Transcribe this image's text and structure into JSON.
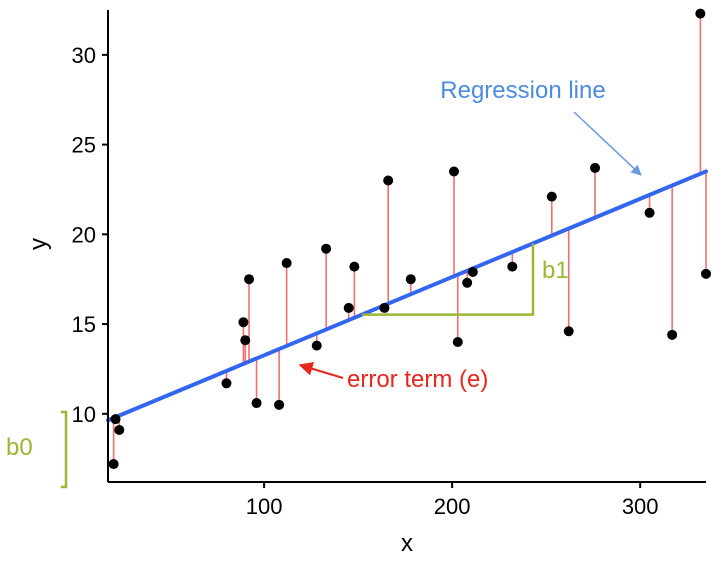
{
  "chart_data": {
    "type": "scatter",
    "title": "",
    "xlabel": "x",
    "ylabel": "y",
    "xlim": [
      17,
      335
    ],
    "ylim": [
      6.2,
      32.5
    ],
    "x_ticks": [
      100,
      200,
      300
    ],
    "y_ticks": [
      10,
      15,
      20,
      25,
      30
    ],
    "grid": false,
    "regression_line": {
      "label": "Regression line",
      "intercept": 8.9,
      "slope": 0.0436,
      "color": "#3366ee"
    },
    "points_color": "#000000",
    "residual_color": "#f07070",
    "points": [
      {
        "x": 20,
        "y": 7.2
      },
      {
        "x": 21,
        "y": 9.7
      },
      {
        "x": 23,
        "y": 9.1
      },
      {
        "x": 80,
        "y": 11.7
      },
      {
        "x": 89,
        "y": 15.1
      },
      {
        "x": 90,
        "y": 14.1
      },
      {
        "x": 92,
        "y": 17.5
      },
      {
        "x": 96,
        "y": 10.6
      },
      {
        "x": 108,
        "y": 10.5
      },
      {
        "x": 112,
        "y": 18.4
      },
      {
        "x": 128,
        "y": 13.8
      },
      {
        "x": 133,
        "y": 19.2
      },
      {
        "x": 145,
        "y": 15.9
      },
      {
        "x": 148,
        "y": 18.2
      },
      {
        "x": 164,
        "y": 15.9
      },
      {
        "x": 166,
        "y": 23.0
      },
      {
        "x": 178,
        "y": 17.5
      },
      {
        "x": 201,
        "y": 23.5
      },
      {
        "x": 203,
        "y": 14.0
      },
      {
        "x": 208,
        "y": 17.3
      },
      {
        "x": 211,
        "y": 17.9
      },
      {
        "x": 232,
        "y": 18.2
      },
      {
        "x": 253,
        "y": 22.1
      },
      {
        "x": 262,
        "y": 14.6
      },
      {
        "x": 276,
        "y": 23.7
      },
      {
        "x": 305,
        "y": 21.2
      },
      {
        "x": 317,
        "y": 14.4
      },
      {
        "x": 332,
        "y": 32.3
      },
      {
        "x": 336,
        "y": 17.8
      }
    ],
    "annotations": {
      "error_term": {
        "label": "error term (e)",
        "x": 114,
        "y": 12.8,
        "color": "#e8271c"
      },
      "slope": {
        "label": "b1",
        "x_start": 152,
        "x_end": 243,
        "color": "#99b833"
      },
      "intercept": {
        "label": "b0",
        "color": "#99b833"
      }
    }
  }
}
